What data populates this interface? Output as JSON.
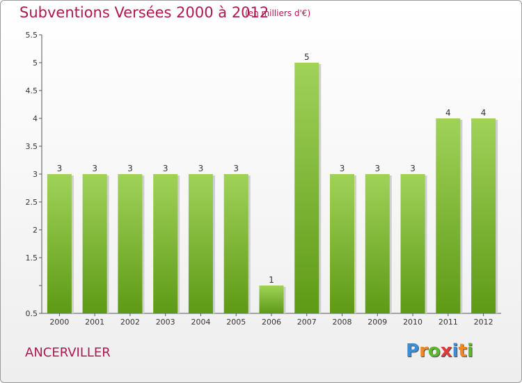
{
  "header": {
    "title": "Subventions Versées 2000 à 2012",
    "subtitle": "(en milliers d'€)"
  },
  "footer": {
    "commune": "ANCERVILLER",
    "logo": {
      "letters": [
        "P",
        "r",
        "o",
        "x",
        "i",
        "t",
        "i"
      ],
      "colors": [
        "#3a8fd8",
        "#f08a1c",
        "#5cb82c",
        "#e23a3a",
        "#3a8fd8",
        "#f08a1c",
        "#5cb82c"
      ]
    }
  },
  "chart_data": {
    "type": "bar",
    "title": "Subventions Versées 2000 à 2012",
    "subtitle": "(en milliers d'€)",
    "xlabel": "",
    "ylabel": "",
    "categories": [
      "2000",
      "2001",
      "2002",
      "2003",
      "2004",
      "2005",
      "2006",
      "2007",
      "2008",
      "2009",
      "2010",
      "2011",
      "2012"
    ],
    "values": [
      3,
      3,
      3,
      3,
      3,
      3,
      1,
      5,
      3,
      3,
      3,
      4,
      4
    ],
    "data_labels": [
      "3",
      "3",
      "3",
      "3",
      "3",
      "3",
      "1",
      "5",
      "3",
      "3",
      "3",
      "4",
      "4"
    ],
    "ylim": [
      0.5,
      5.5
    ],
    "yticks": [
      0.5,
      1,
      1.5,
      2,
      2.5,
      3,
      3.5,
      4,
      4.5,
      5,
      5.5
    ],
    "ytick_labels": [
      "0.5",
      "",
      "1.5",
      "2",
      "2.5",
      "3",
      "3.5",
      "4",
      "4.5",
      "5",
      "5.5"
    ],
    "grid": false,
    "legend": "none",
    "colors": {
      "bar_top": "#a0d25a",
      "bar_bottom": "#5e9a16",
      "title": "#b0174f"
    }
  }
}
